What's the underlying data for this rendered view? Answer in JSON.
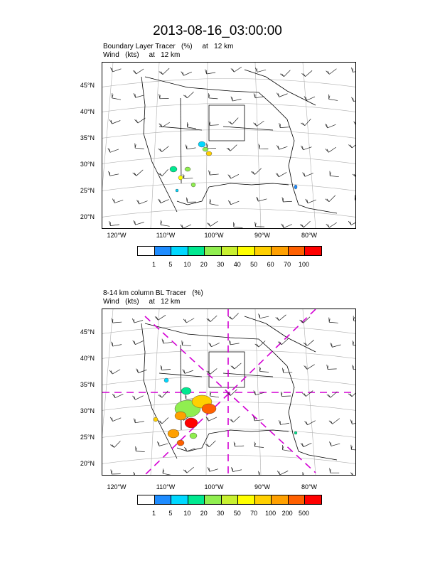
{
  "title": "2013-08-16_03:00:00",
  "panel1": {
    "line1": "Boundary Layer Tracer   (%)     at   12 km",
    "line2": "Wind   (kts)     at   12 km",
    "lat_labels": [
      "45°N",
      "40°N",
      "35°N",
      "30°N",
      "25°N",
      "20°N"
    ],
    "lon_labels": [
      "120°W",
      "110°W",
      "100°W",
      "90°W",
      "80°W"
    ],
    "colorbar_labels": [
      "1",
      "5",
      "10",
      "20",
      "30",
      "40",
      "50",
      "60",
      "70",
      "100"
    ],
    "colorbar_colors": [
      "#ffffff",
      "#1e8cff",
      "#00d8ff",
      "#00e890",
      "#90ee50",
      "#c8f030",
      "#ffff00",
      "#ffd000",
      "#ffa000",
      "#ff6000",
      "#ff0000"
    ]
  },
  "panel2": {
    "line1": "8-14 km column BL Tracer   (%)",
    "line2": "Wind   (kts)     at   12 km",
    "lat_labels": [
      "45°N",
      "40°N",
      "35°N",
      "30°N",
      "25°N",
      "20°N"
    ],
    "lon_labels": [
      "120°W",
      "110°W",
      "100°W",
      "90°W",
      "80°W"
    ],
    "colorbar_labels": [
      "1",
      "5",
      "10",
      "20",
      "30",
      "50",
      "70",
      "100",
      "200",
      "500"
    ],
    "colorbar_colors": [
      "#ffffff",
      "#1e8cff",
      "#00d8ff",
      "#00e890",
      "#90ee50",
      "#c8f030",
      "#ffff00",
      "#ffd000",
      "#ffa000",
      "#ff6000",
      "#ff0000"
    ],
    "overlay_color": "#d400d4"
  }
}
